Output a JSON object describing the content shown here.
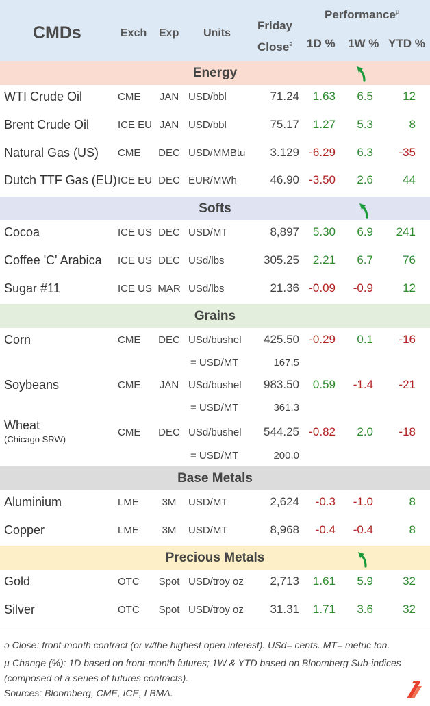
{
  "header": {
    "cmds": "CMDs",
    "exch": "Exch",
    "exp": "Exp",
    "units": "Units",
    "close_line1": "Friday",
    "close_line2": "Close",
    "close_mark": "ə",
    "performance": "Performance",
    "perf_mark": "µ",
    "d1": "1D %",
    "w1": "1W %",
    "ytd": "YTD %"
  },
  "colors": {
    "header_bg": "#dde9f5",
    "energy_bg": "#fadcd0",
    "softs_bg": "#dfe3f2",
    "grains_bg": "#e3efdc",
    "metals_bg": "#dcdcdc",
    "precious_bg": "#fdf0c8",
    "positive": "#2e8b2e",
    "negative": "#b22222",
    "arrow": "#1a9a3a",
    "logo": "#e8402a"
  },
  "sections": {
    "energy": "Energy",
    "softs": "Softs",
    "grains": "Grains",
    "base_metals": "Base Metals",
    "precious_metals": "Precious Metals"
  },
  "icons": {
    "trend": "green-curved-up-arrow-icon",
    "logo": "red-stripes-logo-icon"
  },
  "rows": [
    {
      "name": "WTI Crude Oil",
      "exch": "CME",
      "exp": "JAN",
      "units": "USD/bbl",
      "close": "71.24",
      "d1": "1.63",
      "w1": "6.5",
      "ytd": "12"
    },
    {
      "name": "Brent Crude Oil",
      "exch": "ICE EU",
      "exp": "JAN",
      "units": "USD/bbl",
      "close": "75.17",
      "d1": "1.27",
      "w1": "5.3",
      "ytd": "8"
    },
    {
      "name": "Natural Gas (US)",
      "exch": "CME",
      "exp": "DEC",
      "units": "USD/MMBtu",
      "close": "3.129",
      "d1": "-6.29",
      "w1": "6.3",
      "ytd": "-35"
    },
    {
      "name": "Dutch TTF Gas (EU)",
      "exch": "ICE EU",
      "exp": "DEC",
      "units": "EUR/MWh",
      "close": "46.90",
      "d1": "-3.50",
      "w1": "2.6",
      "ytd": "44"
    },
    {
      "name": "Cocoa",
      "exch": "ICE US",
      "exp": "DEC",
      "units": "USD/MT",
      "close": "8,897",
      "d1": "5.30",
      "w1": "6.9",
      "ytd": "241"
    },
    {
      "name": "Coffee 'C' Arabica",
      "exch": "ICE US",
      "exp": "DEC",
      "units": "USd/lbs",
      "close": "305.25",
      "d1": "2.21",
      "w1": "6.7",
      "ytd": "76"
    },
    {
      "name": "Sugar #11",
      "exch": "ICE US",
      "exp": "MAR",
      "units": "USd/lbs",
      "close": "21.36",
      "d1": "-0.09",
      "w1": "-0.9",
      "ytd": "12"
    },
    {
      "name": "Corn",
      "exch": "CME",
      "exp": "DEC",
      "units": "USd/bushel",
      "close": "425.50",
      "d1": "-0.29",
      "w1": "0.1",
      "ytd": "-16",
      "sub_units": "= USD/MT",
      "sub_close": "167.5"
    },
    {
      "name": "Soybeans",
      "exch": "CME",
      "exp": "JAN",
      "units": "USd/bushel",
      "close": "983.50",
      "d1": "0.59",
      "w1": "-1.4",
      "ytd": "-21",
      "sub_units": "= USD/MT",
      "sub_close": "361.3"
    },
    {
      "name": "Wheat",
      "name_sub": "(Chicago SRW)",
      "exch": "CME",
      "exp": "DEC",
      "units": "USd/bushel",
      "close": "544.25",
      "d1": "-0.82",
      "w1": "2.0",
      "ytd": "-18",
      "sub_units": "= USD/MT",
      "sub_close": "200.0"
    },
    {
      "name": "Aluminium",
      "exch": "LME",
      "exp": "3M",
      "units": "USD/MT",
      "close": "2,624",
      "d1": "-0.3",
      "w1": "-1.0",
      "ytd": "8"
    },
    {
      "name": "Copper",
      "exch": "LME",
      "exp": "3M",
      "units": "USD/MT",
      "close": "8,968",
      "d1": "-0.4",
      "w1": "-0.4",
      "ytd": "8"
    },
    {
      "name": "Gold",
      "exch": "OTC",
      "exp": "Spot",
      "units": "USD/troy oz",
      "close": "2,713",
      "d1": "1.61",
      "w1": "5.9",
      "ytd": "32"
    },
    {
      "name": "Silver",
      "exch": "OTC",
      "exp": "Spot",
      "units": "USD/troy oz",
      "close": "31.31",
      "d1": "1.71",
      "w1": "3.6",
      "ytd": "32"
    }
  ],
  "footnotes": {
    "close_note": "ə Close: front-month contract (or w/the highest open interest). USd= cents. MT= metric ton.",
    "change_note_1": "µ Change (%): 1D based on front-month futures; 1W & YTD based on Bloomberg Sub-indices",
    "change_note_2": "(composed of a series of futures contracts).",
    "sources": "Sources: Bloomberg, CME, ICE, LBMA."
  }
}
